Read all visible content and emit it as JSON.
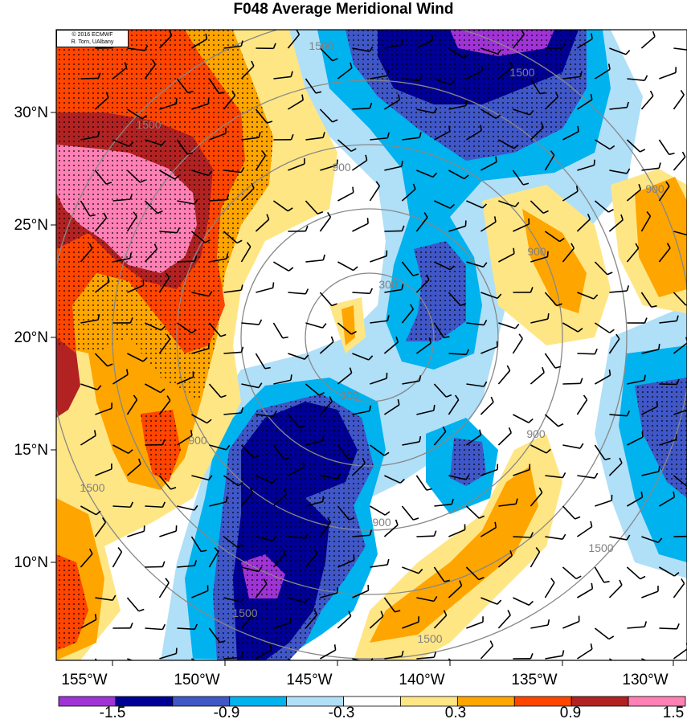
{
  "title": "F048 Average Meridional Wind",
  "credit": {
    "line1": "© 2016 ECMWF",
    "line2": "R. Torn, UAlbany"
  },
  "lat_labels": [
    "30°N",
    "25°N",
    "20°N",
    "15°N",
    "10°N"
  ],
  "lon_labels": [
    "155°W",
    "150°W",
    "145°W",
    "140°W",
    "135°W",
    "130°W"
  ],
  "contour_labels": [
    "1500",
    "1500",
    "1500",
    "900",
    "900",
    "900",
    "900",
    "300",
    "300",
    "900",
    "1500",
    "1500",
    "1500",
    "1500",
    "900"
  ],
  "colorbar": {
    "tick_labels": [
      "-1.5",
      "-0.9",
      "-0.3",
      "0.3",
      "0.9",
      "1.5"
    ],
    "colors": [
      "#a033d6",
      "#000096",
      "#4057c8",
      "#00b2ee",
      "#b0dff8",
      "#ffffff",
      "#ffe685",
      "#ffa500",
      "#ff4500",
      "#b22222",
      "#ff80b4"
    ]
  },
  "fill_colors": {
    "purple": "#a033d6",
    "navy": "#000096",
    "blue": "#4057c8",
    "cyan": "#00b2ee",
    "lightblue": "#b0dff8",
    "lightyellow": "#ffe685",
    "orange": "#ffa500",
    "red": "#ff4500",
    "darkred": "#b22222",
    "pink": "#ff80b4"
  },
  "map_extent": {
    "lon": [
      -157,
      -129
    ],
    "lat": [
      5.5,
      34
    ],
    "center_lon": -143,
    "center_lat": 19
  }
}
